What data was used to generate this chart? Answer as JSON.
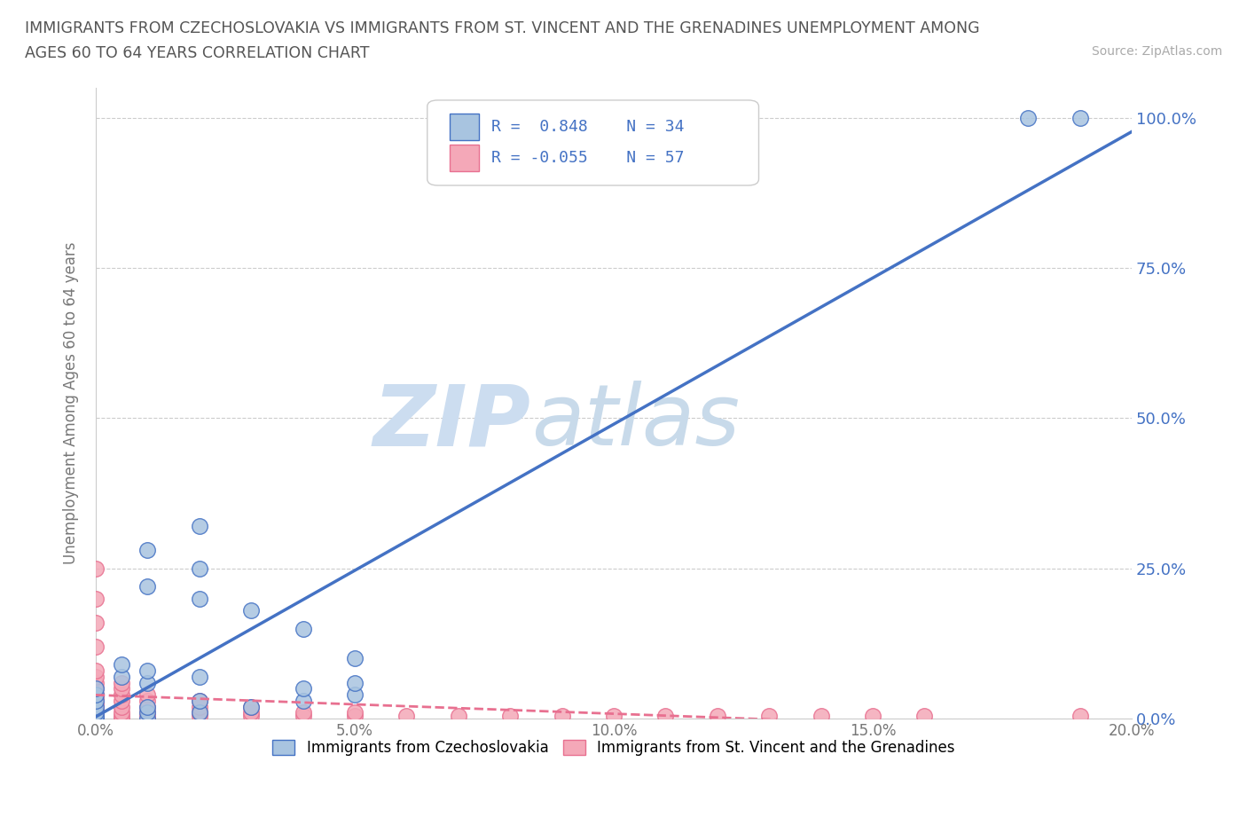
{
  "title_line1": "IMMIGRANTS FROM CZECHOSLOVAKIA VS IMMIGRANTS FROM ST. VINCENT AND THE GRENADINES UNEMPLOYMENT AMONG",
  "title_line2": "AGES 60 TO 64 YEARS CORRELATION CHART",
  "source": "Source: ZipAtlas.com",
  "ylabel": "Unemployment Among Ages 60 to 64 years",
  "xlim": [
    0.0,
    0.2
  ],
  "ylim": [
    0.0,
    1.05
  ],
  "yticks": [
    0.0,
    0.25,
    0.5,
    0.75,
    1.0
  ],
  "ytick_labels": [
    "0.0%",
    "25.0%",
    "50.0%",
    "75.0%",
    "100.0%"
  ],
  "xticks": [
    0.0,
    0.05,
    0.1,
    0.15,
    0.2
  ],
  "xtick_labels": [
    "0.0%",
    "5.0%",
    "10.0%",
    "15.0%",
    "20.0%"
  ],
  "R_czech": 0.848,
  "N_czech": 34,
  "R_svg": -0.055,
  "N_svg": 57,
  "legend_label_czech": "Immigrants from Czechoslovakia",
  "legend_label_svg": "Immigrants from St. Vincent and the Grenadines",
  "color_czech": "#a8c4e0",
  "color_svg": "#f4a8b8",
  "line_color_czech": "#4472c4",
  "line_color_svg": "#e87090",
  "watermark_zip": "ZIP",
  "watermark_atlas": "atlas",
  "watermark_color": "#d0e4f0",
  "czech_x": [
    0.0,
    0.0,
    0.0,
    0.0,
    0.0,
    0.0,
    0.0,
    0.0,
    0.0,
    0.01,
    0.01,
    0.01,
    0.02,
    0.02,
    0.03,
    0.04,
    0.04,
    0.05,
    0.05,
    0.01,
    0.02,
    0.18,
    0.19,
    0.01,
    0.02,
    0.02,
    0.03,
    0.04,
    0.05,
    0.005,
    0.005,
    0.01,
    0.01,
    0.02
  ],
  "czech_y": [
    0.0,
    0.0,
    0.0,
    0.005,
    0.01,
    0.02,
    0.03,
    0.04,
    0.05,
    0.0,
    0.01,
    0.02,
    0.01,
    0.03,
    0.02,
    0.03,
    0.05,
    0.04,
    0.06,
    0.28,
    0.32,
    1.0,
    1.0,
    0.22,
    0.2,
    0.25,
    0.18,
    0.15,
    0.1,
    0.07,
    0.09,
    0.06,
    0.08,
    0.07
  ],
  "svg_x": [
    0.0,
    0.0,
    0.0,
    0.0,
    0.0,
    0.0,
    0.0,
    0.0,
    0.0,
    0.0,
    0.0,
    0.0,
    0.0,
    0.0,
    0.0,
    0.0,
    0.0,
    0.0,
    0.0,
    0.0,
    0.005,
    0.005,
    0.005,
    0.005,
    0.005,
    0.005,
    0.005,
    0.005,
    0.01,
    0.01,
    0.01,
    0.01,
    0.01,
    0.01,
    0.02,
    0.02,
    0.02,
    0.02,
    0.03,
    0.03,
    0.03,
    0.04,
    0.04,
    0.05,
    0.05,
    0.06,
    0.07,
    0.08,
    0.09,
    0.1,
    0.11,
    0.12,
    0.13,
    0.14,
    0.15,
    0.16,
    0.19
  ],
  "svg_y": [
    0.0,
    0.0,
    0.0,
    0.0,
    0.005,
    0.01,
    0.015,
    0.02,
    0.025,
    0.03,
    0.035,
    0.04,
    0.05,
    0.06,
    0.07,
    0.08,
    0.12,
    0.16,
    0.2,
    0.25,
    0.0,
    0.005,
    0.01,
    0.02,
    0.03,
    0.04,
    0.05,
    0.06,
    0.0,
    0.005,
    0.01,
    0.02,
    0.03,
    0.04,
    0.005,
    0.01,
    0.02,
    0.03,
    0.005,
    0.01,
    0.02,
    0.005,
    0.01,
    0.005,
    0.01,
    0.005,
    0.005,
    0.005,
    0.005,
    0.005,
    0.005,
    0.005,
    0.005,
    0.005,
    0.005,
    0.005,
    0.005
  ]
}
